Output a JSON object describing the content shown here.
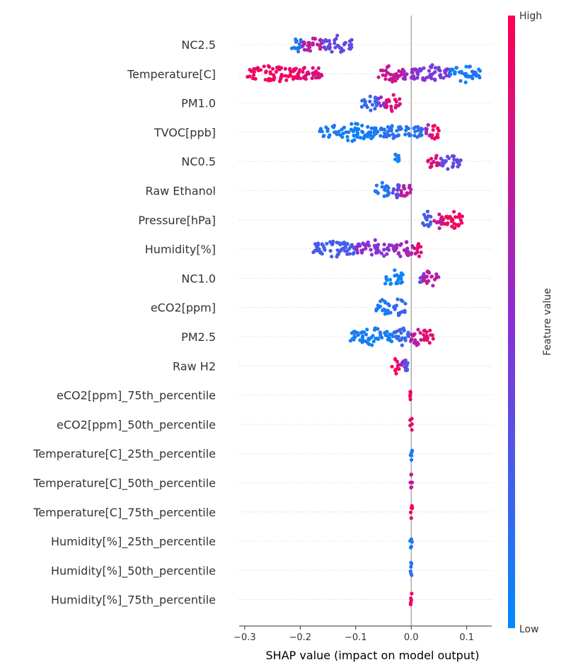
{
  "chart_data": {
    "type": "scatter",
    "subtype": "shap-beeswarm",
    "xlabel": "SHAP value (impact on model output)",
    "xlim": [
      -0.31,
      0.145
    ],
    "x_ticks": [
      -0.3,
      -0.2,
      -0.1,
      0.0,
      0.1
    ],
    "x_tick_labels": [
      "−0.3",
      "−0.2",
      "−0.1",
      "0.0",
      "0.1"
    ],
    "grid": "horizontal dotted per feature",
    "colorbar": {
      "label": "Feature value",
      "high_label": "High",
      "low_label": "Low",
      "low_color": "#008bfb",
      "high_color": "#ff0052",
      "position": "right"
    },
    "features": [
      {
        "name": "NC2.5",
        "segments": [
          {
            "from": -0.215,
            "to": -0.195,
            "f": 0.1
          },
          {
            "from": -0.195,
            "to": -0.16,
            "f": 0.7
          },
          {
            "from": -0.16,
            "to": -0.105,
            "f": 0.35
          }
        ]
      },
      {
        "name": "Temperature[C]",
        "segments": [
          {
            "from": -0.295,
            "to": -0.2,
            "f": 0.95
          },
          {
            "from": -0.2,
            "to": -0.16,
            "f": 0.85
          },
          {
            "from": -0.06,
            "to": -0.015,
            "f": 0.75
          },
          {
            "from": -0.015,
            "to": 0.01,
            "f": 0.55
          },
          {
            "from": 0.01,
            "to": 0.07,
            "f": 0.45
          },
          {
            "from": 0.07,
            "to": 0.125,
            "f": 0.1
          }
        ]
      },
      {
        "name": "PM1.0",
        "segments": [
          {
            "from": -0.09,
            "to": -0.06,
            "f": 0.2
          },
          {
            "from": -0.06,
            "to": -0.045,
            "f": 0.5
          },
          {
            "from": -0.045,
            "to": -0.02,
            "f": 0.85
          }
        ]
      },
      {
        "name": "TVOC[ppb]",
        "segments": [
          {
            "from": -0.165,
            "to": -0.05,
            "f": 0.08
          },
          {
            "from": -0.05,
            "to": 0.02,
            "f": 0.15
          },
          {
            "from": 0.025,
            "to": 0.035,
            "f": 0.6
          },
          {
            "from": 0.035,
            "to": 0.05,
            "f": 0.95
          }
        ]
      },
      {
        "name": "NC0.5",
        "segments": [
          {
            "from": -0.032,
            "to": -0.02,
            "f": 0.05
          },
          {
            "from": 0.03,
            "to": 0.05,
            "f": 0.85
          },
          {
            "from": 0.05,
            "to": 0.09,
            "f": 0.35
          }
        ]
      },
      {
        "name": "Raw Ethanol",
        "segments": [
          {
            "from": -0.065,
            "to": -0.04,
            "f": 0.1
          },
          {
            "from": -0.04,
            "to": -0.02,
            "f": 0.35
          },
          {
            "from": -0.02,
            "to": 0.0,
            "f": 0.7
          }
        ]
      },
      {
        "name": "Pressure[hPa]",
        "segments": [
          {
            "from": 0.02,
            "to": 0.04,
            "f": 0.25
          },
          {
            "from": 0.04,
            "to": 0.06,
            "f": 0.75
          },
          {
            "from": 0.06,
            "to": 0.095,
            "f": 0.95
          }
        ]
      },
      {
        "name": "Humidity[%]",
        "segments": [
          {
            "from": -0.18,
            "to": -0.1,
            "f": 0.25
          },
          {
            "from": -0.1,
            "to": -0.03,
            "f": 0.5
          },
          {
            "from": -0.03,
            "to": 0.005,
            "f": 0.6
          },
          {
            "from": 0.005,
            "to": 0.02,
            "f": 0.85
          }
        ]
      },
      {
        "name": "NC1.0",
        "segments": [
          {
            "from": -0.05,
            "to": -0.015,
            "f": 0.05
          },
          {
            "from": 0.015,
            "to": 0.03,
            "f": 0.3
          },
          {
            "from": 0.02,
            "to": 0.05,
            "f": 0.7
          }
        ]
      },
      {
        "name": "eCO2[ppm]",
        "segments": [
          {
            "from": -0.065,
            "to": -0.035,
            "f": 0.1
          },
          {
            "from": -0.035,
            "to": -0.01,
            "f": 0.2
          }
        ]
      },
      {
        "name": "PM2.5",
        "segments": [
          {
            "from": -0.11,
            "to": -0.03,
            "f": 0.08
          },
          {
            "from": -0.03,
            "to": 0.0,
            "f": 0.2
          },
          {
            "from": 0.0,
            "to": 0.02,
            "f": 0.7
          },
          {
            "from": 0.02,
            "to": 0.04,
            "f": 0.9
          }
        ]
      },
      {
        "name": "Raw H2",
        "segments": [
          {
            "from": -0.035,
            "to": -0.02,
            "f": 0.95
          },
          {
            "from": -0.02,
            "to": -0.008,
            "f": 0.6
          },
          {
            "from": -0.015,
            "to": -0.005,
            "f": 0.3
          }
        ]
      },
      {
        "name": "eCO2[ppm]_75th_percentile",
        "segments": [
          {
            "from": -0.002,
            "to": 0.002,
            "f": 0.95
          }
        ]
      },
      {
        "name": "eCO2[ppm]_50th_percentile",
        "segments": [
          {
            "from": -0.002,
            "to": 0.002,
            "f": 0.9
          }
        ]
      },
      {
        "name": "Temperature[C]_25th_percentile",
        "segments": [
          {
            "from": -0.002,
            "to": 0.002,
            "f": 0.05
          }
        ]
      },
      {
        "name": "Temperature[C]_50th_percentile",
        "segments": [
          {
            "from": -0.002,
            "to": 0.002,
            "f": 0.7
          }
        ]
      },
      {
        "name": "Temperature[C]_75th_percentile",
        "segments": [
          {
            "from": -0.002,
            "to": 0.002,
            "f": 0.95
          }
        ]
      },
      {
        "name": "Humidity[%]_25th_percentile",
        "segments": [
          {
            "from": -0.002,
            "to": 0.002,
            "f": 0.1
          }
        ]
      },
      {
        "name": "Humidity[%]_50th_percentile",
        "segments": [
          {
            "from": -0.002,
            "to": 0.002,
            "f": 0.15
          }
        ]
      },
      {
        "name": "Humidity[%]_75th_percentile",
        "segments": [
          {
            "from": -0.002,
            "to": 0.002,
            "f": 0.9
          }
        ]
      }
    ]
  }
}
